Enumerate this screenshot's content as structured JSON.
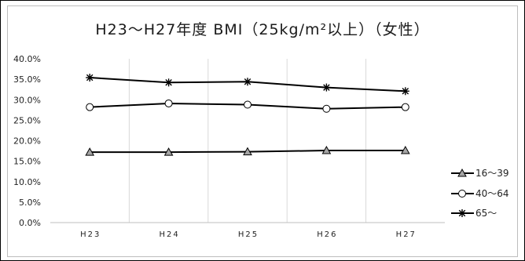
{
  "chart_data": {
    "type": "line",
    "title": "H23～H27年度 BMI（25kg/m²以上）（女性）",
    "categories": [
      "H23",
      "H24",
      "H25",
      "H26",
      "H27"
    ],
    "y_ticks": [
      "0.0%",
      "5.0%",
      "10.0%",
      "15.0%",
      "20.0%",
      "25.0%",
      "30.0%",
      "35.0%",
      "40.0%"
    ],
    "ylim": [
      0,
      40
    ],
    "grid": "vertical",
    "legend_position": "right",
    "series": [
      {
        "name": "16～39",
        "marker": "triangle",
        "values": [
          17.2,
          17.2,
          17.3,
          17.6,
          17.6
        ]
      },
      {
        "name": "40～64",
        "marker": "circle",
        "values": [
          28.2,
          29.1,
          28.8,
          27.8,
          28.2
        ]
      },
      {
        "name": "65～",
        "marker": "star",
        "values": [
          35.4,
          34.2,
          34.4,
          33.0,
          32.1
        ]
      }
    ]
  }
}
